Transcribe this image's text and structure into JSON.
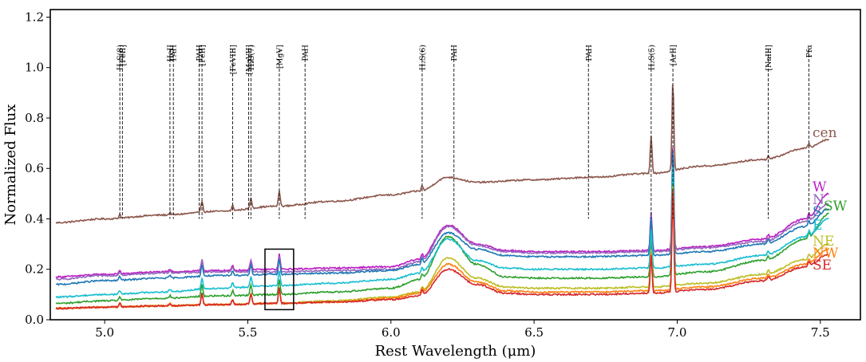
{
  "chart_data": {
    "type": "line",
    "title": "",
    "xlabel": "Rest Wavelength (μm)",
    "ylabel": "Normalized Flux",
    "xlim": [
      4.81,
      7.64
    ],
    "ylim": [
      0.0,
      1.23
    ],
    "xticks": [
      5.0,
      5.5,
      6.0,
      6.5,
      7.0,
      7.5
    ],
    "xtick_labels": [
      "5.0",
      "5.5",
      "6.0",
      "6.5",
      "7.0",
      "7.5"
    ],
    "yticks": [
      0.0,
      0.2,
      0.4,
      0.6,
      0.8,
      1.0,
      1.2
    ],
    "ytick_labels": [
      "0.0",
      "0.2",
      "0.4",
      "0.6",
      "0.8",
      "1.0",
      "1.2"
    ],
    "grid": false,
    "inset_box": {
      "x_range": [
        5.56,
        5.66
      ],
      "y_range": [
        0.04,
        0.28
      ]
    },
    "line_ids": [
      {
        "label": "H₂S(8)",
        "x": 5.053
      },
      {
        "label": "[FeII]",
        "x": 5.062
      },
      {
        "label": "HeII",
        "x": 5.228
      },
      {
        "label": "PAH",
        "x": 5.24
      },
      {
        "label": "PAH",
        "x": 5.33
      },
      {
        "label": "[FeII]",
        "x": 5.34
      },
      {
        "label": "[FeVIII]",
        "x": 5.447
      },
      {
        "label": "[MgVII]",
        "x": 5.503
      },
      {
        "label": "H₂S(7)",
        "x": 5.511
      },
      {
        "label": "[MgV]",
        "x": 5.61
      },
      {
        "label": "PAH",
        "x": 5.7
      },
      {
        "label": "H₂S(6)",
        "x": 6.109
      },
      {
        "label": "PAH",
        "x": 6.22
      },
      {
        "label": "PAH",
        "x": 6.69
      },
      {
        "label": "H₂S(5)",
        "x": 6.909
      },
      {
        "label": "[ArII]",
        "x": 6.985
      },
      {
        "label": "[NaIII]",
        "x": 7.318
      },
      {
        "label": "Pfα",
        "x": 7.46
      }
    ],
    "series": [
      {
        "name": "cen",
        "color": "#8c564b",
        "x": [
          4.83,
          5.0,
          5.2,
          5.4,
          5.6,
          5.8,
          6.0,
          6.1,
          6.2,
          6.3,
          6.5,
          6.7,
          6.9,
          7.1,
          7.3,
          7.45,
          7.53
        ],
        "y": [
          0.385,
          0.4,
          0.415,
          0.43,
          0.45,
          0.47,
          0.495,
          0.51,
          0.565,
          0.545,
          0.555,
          0.565,
          0.58,
          0.61,
          0.635,
          0.68,
          0.715
        ]
      },
      {
        "name": "W",
        "color": "#bc1cc4",
        "x": [
          4.83,
          5.0,
          5.2,
          5.4,
          5.6,
          5.8,
          6.0,
          6.1,
          6.2,
          6.3,
          6.4,
          6.5,
          6.7,
          6.9,
          7.1,
          7.3,
          7.45,
          7.53
        ],
        "y": [
          0.17,
          0.18,
          0.19,
          0.195,
          0.2,
          0.205,
          0.21,
          0.24,
          0.375,
          0.3,
          0.275,
          0.27,
          0.27,
          0.275,
          0.29,
          0.32,
          0.4,
          0.5
        ]
      },
      {
        "name": "N",
        "color": "#9467bd",
        "x": [
          4.83,
          5.0,
          5.2,
          5.4,
          5.6,
          5.8,
          6.0,
          6.1,
          6.2,
          6.3,
          6.4,
          6.5,
          6.7,
          6.9,
          7.1,
          7.3,
          7.45,
          7.53
        ],
        "y": [
          0.16,
          0.175,
          0.185,
          0.19,
          0.19,
          0.195,
          0.2,
          0.23,
          0.37,
          0.295,
          0.27,
          0.265,
          0.265,
          0.27,
          0.285,
          0.31,
          0.39,
          0.46
        ]
      },
      {
        "name": "S",
        "color": "#1f77b4",
        "x": [
          4.83,
          5.0,
          5.2,
          5.4,
          5.6,
          5.8,
          6.0,
          6.1,
          6.2,
          6.3,
          6.4,
          6.5,
          6.7,
          6.9,
          7.1,
          7.3,
          7.45,
          7.53
        ],
        "y": [
          0.14,
          0.155,
          0.165,
          0.175,
          0.18,
          0.185,
          0.195,
          0.22,
          0.345,
          0.28,
          0.255,
          0.25,
          0.25,
          0.255,
          0.27,
          0.3,
          0.37,
          0.44
        ]
      },
      {
        "name": "SW",
        "color": "#2ca02c",
        "x": [
          4.83,
          5.0,
          5.2,
          5.4,
          5.6,
          5.8,
          6.0,
          6.1,
          6.2,
          6.3,
          6.4,
          6.5,
          6.7,
          6.9,
          7.1,
          7.3,
          7.45,
          7.53
        ],
        "y": [
          0.065,
          0.075,
          0.085,
          0.095,
          0.1,
          0.11,
          0.125,
          0.16,
          0.33,
          0.22,
          0.17,
          0.165,
          0.165,
          0.17,
          0.19,
          0.235,
          0.32,
          0.42
        ]
      },
      {
        "name": "E",
        "color": "#17becf",
        "x": [
          4.83,
          5.0,
          5.2,
          5.4,
          5.6,
          5.8,
          6.0,
          6.1,
          6.2,
          6.3,
          6.4,
          6.5,
          6.7,
          6.9,
          7.1,
          7.3,
          7.45,
          7.53
        ],
        "y": [
          0.09,
          0.1,
          0.11,
          0.125,
          0.135,
          0.145,
          0.16,
          0.185,
          0.32,
          0.235,
          0.205,
          0.2,
          0.2,
          0.205,
          0.22,
          0.255,
          0.33,
          0.4
        ]
      },
      {
        "name": "NE",
        "color": "#bcbd22",
        "x": [
          4.83,
          5.0,
          5.2,
          5.4,
          5.6,
          5.8,
          6.0,
          6.1,
          6.2,
          6.3,
          6.4,
          6.5,
          6.7,
          6.9,
          7.1,
          7.3,
          7.45,
          7.53
        ],
        "y": [
          0.045,
          0.05,
          0.055,
          0.06,
          0.065,
          0.075,
          0.09,
          0.11,
          0.245,
          0.165,
          0.13,
          0.125,
          0.125,
          0.13,
          0.145,
          0.18,
          0.24,
          0.3
        ]
      },
      {
        "name": "NW",
        "color": "#ff7f0e",
        "x": [
          4.83,
          5.0,
          5.2,
          5.4,
          5.6,
          5.8,
          6.0,
          6.1,
          6.2,
          6.3,
          6.4,
          6.5,
          6.7,
          6.9,
          7.1,
          7.3,
          7.45,
          7.53
        ],
        "y": [
          0.045,
          0.05,
          0.055,
          0.06,
          0.065,
          0.07,
          0.085,
          0.105,
          0.22,
          0.15,
          0.115,
          0.11,
          0.11,
          0.115,
          0.13,
          0.165,
          0.22,
          0.28
        ]
      },
      {
        "name": "SE",
        "color": "#d62728",
        "x": [
          4.83,
          5.0,
          5.2,
          5.4,
          5.6,
          5.8,
          6.0,
          6.1,
          6.2,
          6.3,
          6.4,
          6.5,
          6.7,
          6.9,
          7.1,
          7.3,
          7.45,
          7.53
        ],
        "y": [
          0.045,
          0.05,
          0.055,
          0.06,
          0.065,
          0.07,
          0.08,
          0.095,
          0.2,
          0.14,
          0.105,
          0.1,
          0.1,
          0.105,
          0.12,
          0.155,
          0.21,
          0.26
        ]
      }
    ],
    "emission_peaks": [
      {
        "x": 5.053,
        "amp": 0.015
      },
      {
        "x": 5.228,
        "amp": 0.01
      },
      {
        "x": 5.34,
        "amp": 0.045
      },
      {
        "x": 5.447,
        "amp": 0.02
      },
      {
        "x": 5.511,
        "amp": 0.04
      },
      {
        "x": 5.61,
        "amp": 0.06
      },
      {
        "x": 6.109,
        "amp": 0.02
      },
      {
        "x": 6.909,
        "amp": 0.15
      },
      {
        "x": 6.985,
        "amp": 0.42
      },
      {
        "x": 7.318,
        "amp": 0.015
      },
      {
        "x": 7.46,
        "amp": 0.02
      }
    ],
    "series_label_order": [
      "cen",
      "W",
      "N",
      "S",
      "SW",
      "E",
      "NE",
      "NW",
      "SE"
    ]
  }
}
